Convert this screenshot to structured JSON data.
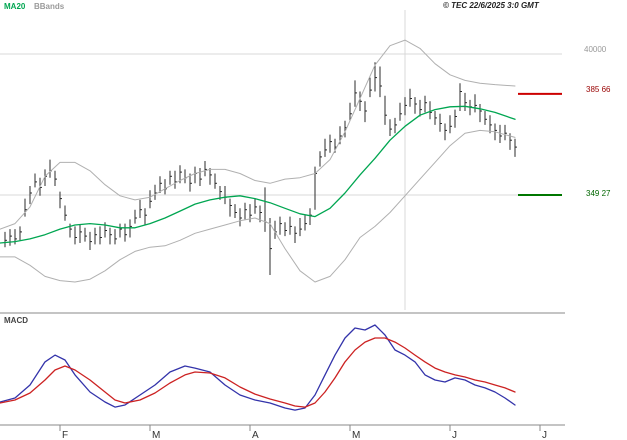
{
  "header": {
    "copyright": "© TEC 22/6/2025 3:0 GMT"
  },
  "legend": {
    "ma20": "MA20",
    "bbands": "BBands"
  },
  "panels": {
    "macd_label": "MACD"
  },
  "y_axis": {
    "top_label": "40000",
    "resistance": {
      "label": "385 66",
      "value": 385.66
    },
    "support": {
      "label": "349 27",
      "value": 349.27
    }
  },
  "colors": {
    "bar": "#2b2b2b",
    "ma20": "#00a651",
    "bbands": "#b0b0b0",
    "grid": "#d9d9d9",
    "frame": "#888888",
    "resistance": "#cc0000",
    "support": "#007700",
    "macd_line": "#3333aa",
    "macd_signal": "#cc2222",
    "axis_text": "#333333"
  },
  "chart_data": [
    {
      "type": "candlestick",
      "title": "",
      "ylabel": "",
      "xlabel": "",
      "ylim": [
        308,
        416
      ],
      "grid": true,
      "y_gridlines": [
        400.0,
        349.27
      ],
      "levels": [
        {
          "name": "resistance",
          "value": 385.66
        },
        {
          "name": "support",
          "value": 349.27
        }
      ],
      "x_tick_labels": [
        "F",
        "M",
        "A",
        "M",
        "J",
        "J"
      ],
      "bars": {
        "high": [
          336,
          337,
          337,
          338,
          348,
          352.5,
          357,
          355.5,
          358.5,
          362,
          358,
          350.5,
          345.5,
          339,
          338,
          338.5,
          337.5,
          336,
          337.5,
          338,
          339.5,
          337.5,
          337,
          339,
          339,
          340.5,
          344,
          347.5,
          344.5,
          351,
          353,
          356,
          355,
          358,
          358,
          360,
          358.5,
          357,
          359.5,
          359,
          361.5,
          359,
          357,
          352.5,
          352.5,
          348,
          346,
          344.5,
          346.5,
          346,
          348,
          345.5,
          352,
          341,
          340,
          341.5,
          339.5,
          341.5,
          338,
          341,
          342,
          344.5,
          359.5,
          365,
          369.5,
          371,
          369.5,
          374,
          376,
          382.5,
          390.5,
          386.5,
          383,
          391.5,
          397,
          395.5,
          385,
          376.5,
          377,
          382.5,
          384.5,
          387.5,
          384.5,
          383.5,
          385,
          383,
          379.5,
          378.5,
          375,
          378,
          380,
          389.5,
          386,
          383.5,
          385.5,
          382,
          379.5,
          378,
          375,
          374.5,
          374.5,
          371.5,
          369.5
        ],
        "low": [
          330.5,
          331,
          331.5,
          333,
          341.5,
          346,
          352,
          349,
          352.5,
          355.5,
          352.5,
          344.5,
          340,
          334,
          331.5,
          332,
          332.5,
          329.5,
          331.5,
          331.5,
          334,
          331.5,
          331.5,
          334,
          332.5,
          334,
          339,
          341,
          338.5,
          344.5,
          347.5,
          350,
          349.5,
          353,
          351.5,
          353.5,
          353.5,
          350.5,
          353.5,
          352.5,
          356,
          353,
          351.5,
          347.5,
          346,
          341.5,
          341,
          338,
          340.5,
          339.5,
          342.5,
          339.5,
          336,
          320.5,
          333.5,
          335,
          334.5,
          335,
          332,
          334.5,
          336.5,
          338.5,
          344,
          359.5,
          363,
          364.5,
          364.5,
          367.5,
          370,
          376,
          381,
          379.5,
          375.5,
          384.5,
          386.5,
          384.5,
          374.5,
          370.5,
          371.5,
          376,
          378,
          381,
          378.5,
          377.5,
          379,
          376.5,
          374.5,
          372,
          369,
          371.5,
          373.5,
          379.5,
          379.5,
          378,
          379,
          375.5,
          374.5,
          371.5,
          369,
          368,
          369,
          365.5,
          363
        ],
        "close": [
          333,
          334.5,
          333.5,
          336,
          344,
          350,
          354,
          352,
          356,
          358,
          355,
          348,
          342,
          337,
          334,
          336,
          334.5,
          332.5,
          335,
          334,
          336.5,
          335,
          333.5,
          337,
          335,
          338,
          341,
          344,
          342,
          347,
          350,
          353.5,
          351.5,
          356,
          354,
          357.5,
          355.5,
          353.5,
          357,
          355,
          358.5,
          356.5,
          353.5,
          350.5,
          348.5,
          345.5,
          343,
          341,
          344,
          342,
          345,
          343,
          339.5,
          330,
          336,
          339,
          336.5,
          338,
          335.5,
          337,
          339,
          342,
          357,
          363,
          365.5,
          368.5,
          366.5,
          370.5,
          373.5,
          378.5,
          386,
          383,
          379.5,
          387,
          391.5,
          388.5,
          378,
          373,
          374.5,
          378.5,
          381.5,
          384,
          382,
          380,
          382.5,
          379,
          377,
          375,
          372.5,
          374,
          377.5,
          386.5,
          382.5,
          381,
          381.5,
          379.5,
          376.5,
          374.5,
          372.5,
          370.5,
          371.5,
          369,
          366.5
        ]
      },
      "overlays": {
        "x": [
          0,
          15,
          30,
          45,
          60,
          75,
          90,
          105,
          120,
          135,
          150,
          165,
          180,
          195,
          210,
          225,
          240,
          255,
          270,
          285,
          300,
          315,
          330,
          345,
          360,
          375,
          390,
          405,
          420,
          435,
          450,
          465,
          480,
          495,
          515
        ],
        "ma20": [
          332,
          332.5,
          333.5,
          335,
          337,
          338.5,
          339,
          338.5,
          337.5,
          337.5,
          339,
          341,
          343.5,
          346,
          347.5,
          348.5,
          349,
          348,
          346.5,
          344.5,
          342.5,
          341.5,
          344.5,
          350,
          356.5,
          362.5,
          369,
          374,
          378,
          380,
          381,
          381.2,
          380.3,
          379,
          376.5
        ],
        "bb_upper": [
          337,
          339,
          345,
          356,
          361,
          361,
          358,
          353,
          349,
          347.5,
          348.5,
          351.5,
          354.5,
          357,
          358.5,
          358.5,
          357,
          354.5,
          353.5,
          355,
          355.5,
          357,
          362,
          372,
          384,
          396,
          403,
          405,
          402,
          396.5,
          392.5,
          390.5,
          389.5,
          389,
          388.5
        ],
        "bb_lower": [
          327,
          327,
          324,
          320,
          318.5,
          318,
          319,
          322,
          326,
          329,
          330.5,
          331,
          333,
          335.5,
          337,
          338.5,
          340,
          341,
          339,
          330,
          322,
          318,
          320,
          326,
          334,
          338,
          343,
          349,
          355,
          361,
          367,
          371.5,
          372.5,
          372,
          370
        ]
      }
    },
    {
      "type": "line",
      "title": "MACD",
      "ylim": [
        -2,
        6.6
      ],
      "legend_position": "none",
      "x": [
        0,
        15,
        30,
        45,
        55,
        65,
        75,
        90,
        105,
        115,
        125,
        140,
        155,
        170,
        185,
        195,
        210,
        225,
        240,
        255,
        270,
        285,
        295,
        305,
        315,
        325,
        335,
        345,
        355,
        365,
        375,
        385,
        395,
        405,
        415,
        425,
        435,
        445,
        455,
        465,
        475,
        485,
        495,
        505,
        515
      ],
      "series": [
        {
          "name": "macd",
          "values": [
            -0.23,
            0.08,
            1.08,
            2.85,
            3.38,
            3.0,
            1.85,
            0.54,
            -0.23,
            -0.62,
            -0.46,
            0.31,
            1.08,
            2.08,
            2.54,
            2.38,
            2.08,
            1.08,
            0.31,
            -0.08,
            -0.31,
            -0.69,
            -0.85,
            -0.69,
            0.31,
            1.85,
            3.38,
            4.69,
            5.46,
            5.31,
            5.69,
            4.92,
            3.77,
            3.38,
            2.85,
            1.85,
            1.46,
            1.31,
            1.62,
            1.46,
            1.08,
            0.85,
            0.54,
            0.08,
            -0.46
          ]
        },
        {
          "name": "signal",
          "values": [
            -0.31,
            -0.08,
            0.46,
            1.46,
            2.23,
            2.54,
            2.23,
            1.46,
            0.54,
            -0.08,
            -0.31,
            -0.08,
            0.46,
            1.23,
            1.85,
            2.08,
            2.0,
            1.62,
            0.92,
            0.38,
            0.0,
            -0.31,
            -0.54,
            -0.62,
            -0.31,
            0.54,
            1.62,
            2.85,
            3.77,
            4.38,
            4.69,
            4.69,
            4.38,
            3.92,
            3.38,
            2.85,
            2.38,
            2.08,
            1.85,
            1.69,
            1.46,
            1.31,
            1.08,
            0.85,
            0.54
          ]
        }
      ]
    }
  ]
}
